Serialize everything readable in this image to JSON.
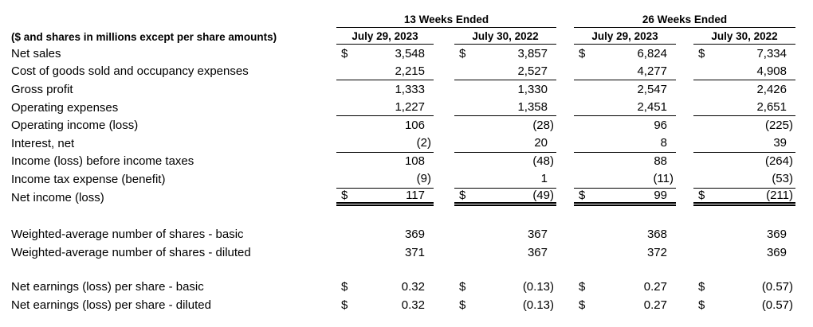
{
  "colors": {
    "text": "#000000",
    "background": "#ffffff",
    "rule": "#000000"
  },
  "table": {
    "group_headers": [
      "13 Weeks Ended",
      "26 Weeks Ended"
    ],
    "column_headers": [
      "July 29, 2023",
      "July 30, 2022",
      "July 29, 2023",
      "July 30, 2022"
    ],
    "unit_note": "($ and shares in millions except per share amounts)",
    "currency_symbol": "$",
    "rows": [
      {
        "label": "Net sales",
        "values": [
          "3,548",
          "3,857",
          "6,824",
          "7,334"
        ]
      },
      {
        "label": "Cost of goods sold and occupancy expenses",
        "values": [
          "2,215",
          "2,527",
          "4,277",
          "4,908"
        ]
      },
      {
        "label": "Gross profit",
        "values": [
          "1,333",
          "1,330",
          "2,547",
          "2,426"
        ]
      },
      {
        "label": "Operating expenses",
        "values": [
          "1,227",
          "1,358",
          "2,451",
          "2,651"
        ]
      },
      {
        "label": "Operating income (loss)",
        "values": [
          "106",
          "(28)",
          "96",
          "(225)"
        ]
      },
      {
        "label": "Interest, net",
        "values": [
          "(2)",
          "20",
          "8",
          "39"
        ]
      },
      {
        "label": "Income (loss) before income taxes",
        "values": [
          "108",
          "(48)",
          "88",
          "(264)"
        ]
      },
      {
        "label": "Income tax expense (benefit)",
        "values": [
          "(9)",
          "1",
          "(11)",
          "(53)"
        ]
      },
      {
        "label": "Net income (loss)",
        "values": [
          "117",
          "(49)",
          "99",
          "(211)"
        ]
      },
      {
        "label": "Weighted-average number of shares - basic",
        "values": [
          "369",
          "367",
          "368",
          "369"
        ]
      },
      {
        "label": "Weighted-average number of shares - diluted",
        "values": [
          "371",
          "367",
          "372",
          "369"
        ]
      },
      {
        "label": "Net earnings (loss) per share - basic",
        "values": [
          "0.32",
          "(0.13)",
          "0.27",
          "(0.57)"
        ]
      },
      {
        "label": "Net earnings (loss) per share - diluted",
        "values": [
          "0.32",
          "(0.13)",
          "0.27",
          "(0.57)"
        ]
      }
    ]
  }
}
